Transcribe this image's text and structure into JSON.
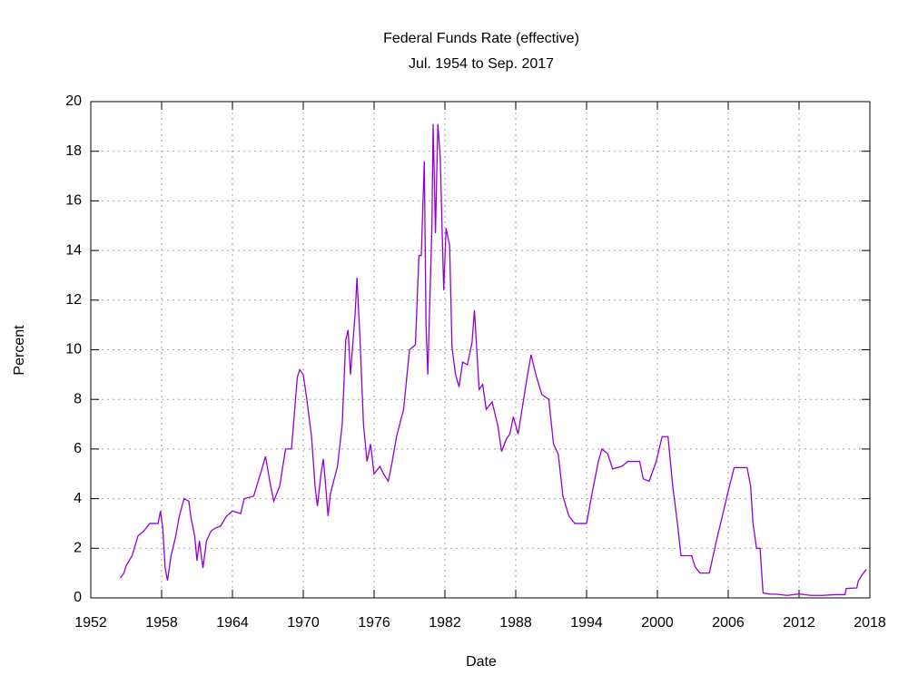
{
  "chart_data": {
    "type": "line",
    "title": "Federal Funds Rate (effective)",
    "subtitle": "Jul. 1954 to Sep. 2017",
    "x_label": "Date",
    "y_label": "Percent",
    "xlim": [
      1952,
      2018
    ],
    "xticks": [
      1952,
      1958,
      1964,
      1970,
      1976,
      1982,
      1988,
      1994,
      2000,
      2006,
      2012,
      2018
    ],
    "ylim": [
      0,
      20
    ],
    "yticks": [
      0,
      2,
      4,
      6,
      8,
      10,
      12,
      14,
      16,
      18,
      20
    ],
    "grid": true,
    "series": [
      {
        "color": "#9400d3",
        "x": [
          1954.5,
          1954.8,
          1955.0,
          1955.5,
          1956.0,
          1956.5,
          1957.0,
          1957.7,
          1957.9,
          1958.1,
          1958.3,
          1958.5,
          1958.8,
          1959.2,
          1959.5,
          1959.9,
          1960.3,
          1960.5,
          1960.8,
          1961.0,
          1961.2,
          1961.5,
          1961.8,
          1962.2,
          1962.5,
          1963.0,
          1963.5,
          1964.0,
          1964.7,
          1965.0,
          1965.8,
          1966.5,
          1966.8,
          1967.2,
          1967.5,
          1968.0,
          1968.5,
          1969.0,
          1969.5,
          1969.7,
          1970.0,
          1970.3,
          1970.7,
          1971.0,
          1971.2,
          1971.5,
          1971.7,
          1971.9,
          1972.1,
          1972.3,
          1972.9,
          1973.3,
          1973.6,
          1973.8,
          1974.0,
          1974.4,
          1974.55,
          1974.8,
          1975.1,
          1975.4,
          1975.7,
          1976.0,
          1976.5,
          1976.8,
          1977.2,
          1977.5,
          1977.9,
          1978.5,
          1979.0,
          1979.5,
          1979.8,
          1980.0,
          1980.25,
          1980.4,
          1980.55,
          1980.9,
          1981.0,
          1981.2,
          1981.4,
          1981.6,
          1981.9,
          1982.1,
          1982.4,
          1982.6,
          1982.9,
          1983.2,
          1983.5,
          1983.9,
          1984.3,
          1984.5,
          1984.9,
          1985.2,
          1985.5,
          1986.0,
          1986.5,
          1986.8,
          1987.2,
          1987.5,
          1987.8,
          1988.2,
          1988.6,
          1989.0,
          1989.3,
          1989.7,
          1990.2,
          1990.8,
          1991.2,
          1991.6,
          1992.0,
          1992.5,
          1993.0,
          1993.5,
          1994.0,
          1994.5,
          1995.0,
          1995.3,
          1995.8,
          1996.2,
          1997.0,
          1997.5,
          1998.5,
          1998.8,
          1999.3,
          1999.9,
          2000.4,
          2000.9,
          2001.3,
          2001.7,
          2002.0,
          2002.9,
          2003.2,
          2003.6,
          2004.4,
          2005.0,
          2005.5,
          2006.0,
          2006.5,
          2007.6,
          2007.9,
          2008.1,
          2008.4,
          2008.7,
          2008.95,
          2009.5,
          2010.0,
          2011.0,
          2012.0,
          2013.0,
          2014.0,
          2015.0,
          2015.9,
          2016.0,
          2016.9,
          2017.0,
          2017.3,
          2017.7
        ],
        "values": [
          0.8,
          1.0,
          1.3,
          1.7,
          2.5,
          2.7,
          3.0,
          3.0,
          3.5,
          2.8,
          1.2,
          0.7,
          1.7,
          2.5,
          3.3,
          4.0,
          3.9,
          3.2,
          2.5,
          1.5,
          2.3,
          1.2,
          2.3,
          2.7,
          2.8,
          2.9,
          3.3,
          3.5,
          3.4,
          4.0,
          4.1,
          5.2,
          5.7,
          4.6,
          3.9,
          4.5,
          6.0,
          6.0,
          8.9,
          9.2,
          9.0,
          8.0,
          6.5,
          4.5,
          3.7,
          5.0,
          5.6,
          4.5,
          3.3,
          4.2,
          5.3,
          7.0,
          10.4,
          10.8,
          9.0,
          11.5,
          12.9,
          10.5,
          7.0,
          5.5,
          6.2,
          5.0,
          5.3,
          5.0,
          4.7,
          5.4,
          6.5,
          7.6,
          10.0,
          10.2,
          13.8,
          13.8,
          17.6,
          11.0,
          9.0,
          15.0,
          19.1,
          14.7,
          19.1,
          17.8,
          12.4,
          14.9,
          14.2,
          10.1,
          9.0,
          8.5,
          9.5,
          9.4,
          10.3,
          11.6,
          8.4,
          8.6,
          7.6,
          7.9,
          6.9,
          5.9,
          6.4,
          6.6,
          7.3,
          6.6,
          7.8,
          9.0,
          9.8,
          9.0,
          8.2,
          8.0,
          6.2,
          5.8,
          4.1,
          3.3,
          3.0,
          3.0,
          3.0,
          4.3,
          5.5,
          6.0,
          5.8,
          5.2,
          5.3,
          5.5,
          5.5,
          4.8,
          4.7,
          5.5,
          6.5,
          6.5,
          4.5,
          3.0,
          1.7,
          1.7,
          1.25,
          1.0,
          1.0,
          2.3,
          3.3,
          4.3,
          5.25,
          5.25,
          4.5,
          3.0,
          2.0,
          2.0,
          0.2,
          0.15,
          0.15,
          0.1,
          0.16,
          0.1,
          0.1,
          0.13,
          0.13,
          0.38,
          0.4,
          0.66,
          0.9,
          1.15
        ]
      }
    ]
  }
}
